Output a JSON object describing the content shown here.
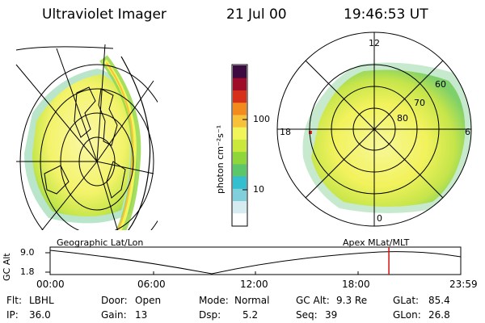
{
  "header": {
    "instrument": "Ultraviolet Imager",
    "date": "21 Jul 00",
    "time": "19:46:53 UT"
  },
  "colorbar": {
    "unit_label": "photon cm⁻²s⁻¹",
    "tick_labels": [
      "100",
      "10"
    ],
    "colors": [
      "#ffffff",
      "#d6ecf0",
      "#7fd0dc",
      "#33bfd0",
      "#5cc66a",
      "#8fd63a",
      "#c9e83b",
      "#f2f55a",
      "#f7c23a",
      "#f28a1e",
      "#d6301b",
      "#9e0c2a",
      "#3c0a40"
    ]
  },
  "left_panel": {
    "label": "Geographic Lat/Lon"
  },
  "right_panel": {
    "label": "Apex MLat/MLT",
    "mlt_labels": [
      "12",
      "18",
      "6",
      "0"
    ],
    "mlat_labels": [
      "60",
      "70",
      "80"
    ]
  },
  "timeline": {
    "y_axis_label": "GC Alt",
    "y_ticks": [
      "9.0",
      "1.8"
    ],
    "x_ticks": [
      "00:00",
      "06:00",
      "12:00",
      "18:00",
      "23:59"
    ],
    "current_time_fraction": 0.825,
    "marker_color": "#d01010"
  },
  "status": {
    "flt_label": "Flt:",
    "flt_value": "LBHL",
    "ip_label": "IP:",
    "ip_value": "36.0",
    "door_label": "Door:",
    "door_value": "Open",
    "gain_label": "Gain:",
    "gain_value": "13",
    "mode_label": "Mode:",
    "mode_value": "Normal",
    "dsp_label": "Dsp:",
    "dsp_value": "5.2",
    "gcalt_label": "GC Alt:",
    "gcalt_value": "9.3 Re",
    "seq_label": "Seq:",
    "seq_value": "39",
    "glat_label": "GLat:",
    "glat_value": "85.4",
    "glon_label": "GLon:",
    "glon_value": "26.8"
  }
}
